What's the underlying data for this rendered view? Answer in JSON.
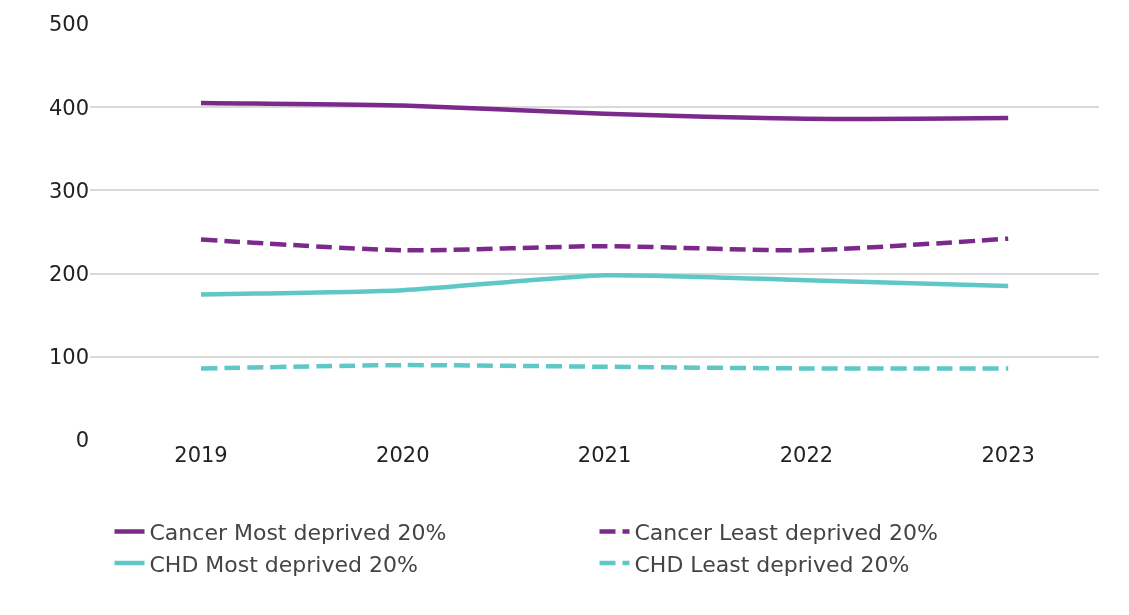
{
  "chart_data": {
    "type": "line",
    "categories": [
      "2019",
      "2020",
      "2021",
      "2022",
      "2023"
    ],
    "series": [
      {
        "name": "Cancer Most deprived 20%",
        "color": "#7b2a8c",
        "line_style": "solid",
        "values": [
          405,
          402,
          392,
          386,
          387
        ]
      },
      {
        "name": "Cancer Least deprived 20%",
        "color": "#7b2a8c",
        "line_style": "dashed",
        "values": [
          241,
          228,
          233,
          228,
          242
        ]
      },
      {
        "name": "CHD Most deprived 20%",
        "color": "#5ec8c6",
        "line_style": "solid",
        "values": [
          175,
          180,
          198,
          192,
          185
        ]
      },
      {
        "name": "CHD Least deprived 20%",
        "color": "#5ec8c6",
        "line_style": "dashed",
        "values": [
          86,
          90,
          88,
          86,
          86
        ]
      }
    ],
    "ylim": [
      0,
      500
    ],
    "yticks": [
      0,
      100,
      200,
      300,
      400,
      500
    ],
    "grid": "y",
    "legend": "bottom",
    "marker": "none"
  }
}
